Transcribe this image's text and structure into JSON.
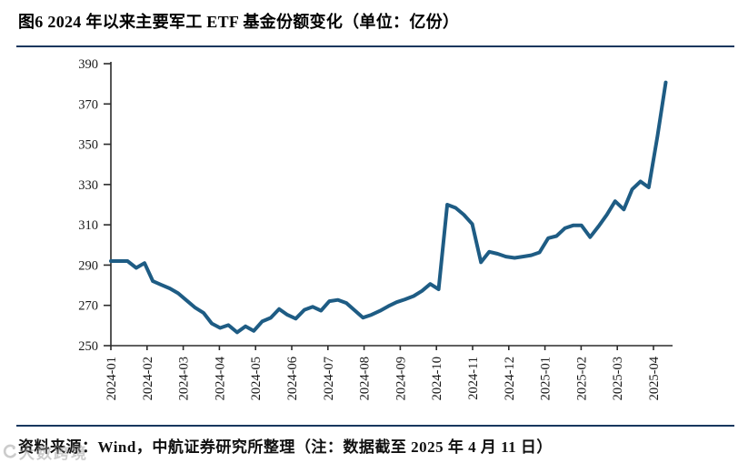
{
  "figure": {
    "title": "图6  2024 年以来主要军工 ETF 基金份额变化（单位：亿份）",
    "source_note": "资料来源：Wind，中航证券研究所整理（注：数据截至 2025 年 4 月 11 日）",
    "watermark_text": "大数跨境",
    "rule_color": "#17375E"
  },
  "chart_data": {
    "type": "line",
    "title": "2024 年以来主要军工 ETF 基金份额变化",
    "unit": "亿份",
    "xlabel": "",
    "ylabel": "",
    "ylim": [
      250,
      390
    ],
    "y_ticks": [
      250,
      270,
      290,
      310,
      330,
      350,
      370,
      390
    ],
    "x_tick_labels": [
      "2024-01",
      "2024-02",
      "2024-03",
      "2024-04",
      "2024-05",
      "2024-06",
      "2024-07",
      "2024-08",
      "2024-09",
      "2024-10",
      "2024-11",
      "2024-12",
      "2025-01",
      "2025-02",
      "2025-03",
      "2025-04"
    ],
    "grid": false,
    "legend_position": "none",
    "line_color": "#1E5C84",
    "axis_color": "#2b2b2b",
    "series": [
      {
        "name": "主要军工ETF基金份额（亿份）",
        "points": [
          [
            0.0,
            292
          ],
          [
            0.23,
            292
          ],
          [
            0.46,
            292
          ],
          [
            0.7,
            288.6
          ],
          [
            0.93,
            291
          ],
          [
            1.16,
            282
          ],
          [
            1.39,
            280.2
          ],
          [
            1.63,
            278.4
          ],
          [
            1.86,
            276
          ],
          [
            2.09,
            272.5
          ],
          [
            2.32,
            269
          ],
          [
            2.56,
            266.3
          ],
          [
            2.79,
            261
          ],
          [
            3.02,
            258.8
          ],
          [
            3.25,
            260.2
          ],
          [
            3.49,
            256.6
          ],
          [
            3.72,
            259.6
          ],
          [
            3.95,
            257.3
          ],
          [
            4.18,
            262
          ],
          [
            4.42,
            263.8
          ],
          [
            4.65,
            268.2
          ],
          [
            4.88,
            265.3
          ],
          [
            5.11,
            263.4
          ],
          [
            5.35,
            267.8
          ],
          [
            5.58,
            269.3
          ],
          [
            5.81,
            267.4
          ],
          [
            6.04,
            272.1
          ],
          [
            6.28,
            272.7
          ],
          [
            6.51,
            271.2
          ],
          [
            6.74,
            267.5
          ],
          [
            6.97,
            263.9
          ],
          [
            7.2,
            265.3
          ],
          [
            7.44,
            267.3
          ],
          [
            7.67,
            269.6
          ],
          [
            7.9,
            271.6
          ],
          [
            8.13,
            273
          ],
          [
            8.37,
            274.6
          ],
          [
            8.6,
            277.2
          ],
          [
            8.83,
            280.6
          ],
          [
            9.06,
            278
          ],
          [
            9.3,
            320
          ],
          [
            9.53,
            318.4
          ],
          [
            9.76,
            315
          ],
          [
            9.99,
            310.4
          ],
          [
            10.23,
            291.4
          ],
          [
            10.46,
            296.6
          ],
          [
            10.69,
            295.6
          ],
          [
            10.92,
            294.2
          ],
          [
            11.16,
            293.6
          ],
          [
            11.39,
            294.2
          ],
          [
            11.62,
            294.9
          ],
          [
            11.85,
            296.3
          ],
          [
            12.09,
            303.4
          ],
          [
            12.32,
            304.4
          ],
          [
            12.55,
            308.3
          ],
          [
            12.78,
            309.7
          ],
          [
            13.01,
            309.7
          ],
          [
            13.25,
            303.9
          ],
          [
            13.48,
            309.2
          ],
          [
            13.71,
            315
          ],
          [
            13.94,
            321.7
          ],
          [
            14.18,
            317.6
          ],
          [
            14.41,
            327.6
          ],
          [
            14.64,
            331.5
          ],
          [
            14.87,
            328.6
          ],
          [
            15.11,
            354
          ],
          [
            15.34,
            380.7
          ]
        ]
      }
    ]
  }
}
